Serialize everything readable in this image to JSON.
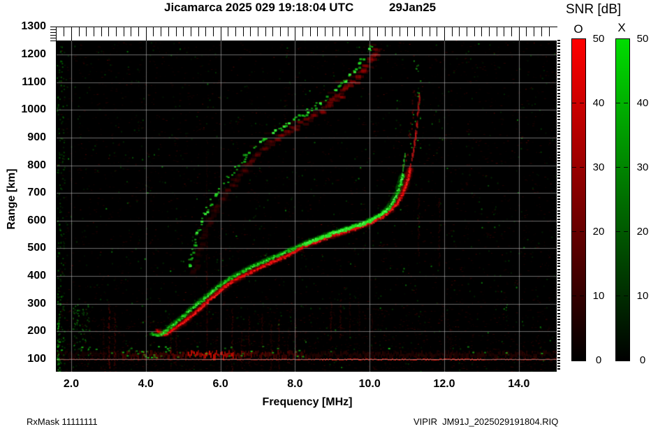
{
  "header": {
    "title": "Jicamarca 2025 029 19:18:04 UTC",
    "date": "29Jan25"
  },
  "footer": {
    "left": "RxMask 11111111",
    "right": "VIPIR  JM91J_2025029191804.RIQ"
  },
  "chart_data": {
    "type": "heatmap",
    "title": "Jicamarca 2025 029 19:18:04 UTC",
    "date_label": "29Jan25",
    "xlabel": "Frequency [MHz]",
    "ylabel": "Range [km]",
    "xlim": [
      1.6,
      15.0
    ],
    "ylim": [
      55,
      1250
    ],
    "grid": true,
    "background": "#000000",
    "xticks": [
      2,
      4,
      6,
      8,
      10,
      12,
      14
    ],
    "xtick_labels": [
      "2.0",
      "4.0",
      "6.0",
      "8.0",
      "10.0",
      "12.0",
      "14.0"
    ],
    "minor_xtick_step": 0.2,
    "yticks": [
      100,
      200,
      300,
      400,
      500,
      600,
      700,
      800,
      900,
      1000,
      1100,
      1200,
      1300
    ],
    "ytick_labels": [
      "100",
      "200",
      "300",
      "400",
      "500",
      "600",
      "700",
      "800",
      "900",
      "1000",
      "1100",
      "1200",
      "1300"
    ],
    "colorbar": {
      "title": "SNR [dB]",
      "o_label": "O",
      "x_label": "X",
      "min": 0,
      "max": 50,
      "ticks": [
        50,
        40,
        30,
        20,
        10,
        0
      ],
      "tick_labels": [
        "50",
        "40",
        "30",
        "20",
        "10",
        "0"
      ],
      "o_color": "#ff0000",
      "x_color": "#00dd00"
    },
    "colors": {
      "o_mode": "#ee1010",
      "x_mode": "#22dd22",
      "grid": "#b2b2b2"
    },
    "traces": {
      "o_mode_first_hop": [
        [
          4.3,
          205
        ],
        [
          4.42,
          193
        ],
        [
          4.55,
          196
        ],
        [
          4.75,
          212
        ],
        [
          4.95,
          232
        ],
        [
          5.2,
          258
        ],
        [
          5.45,
          288
        ],
        [
          5.7,
          318
        ],
        [
          5.95,
          348
        ],
        [
          6.2,
          375
        ],
        [
          6.5,
          398
        ],
        [
          6.8,
          418
        ],
        [
          7.1,
          437
        ],
        [
          7.45,
          458
        ],
        [
          7.8,
          478
        ],
        [
          8.15,
          505
        ],
        [
          8.5,
          525
        ],
        [
          8.9,
          545
        ],
        [
          9.3,
          562
        ],
        [
          9.7,
          580
        ],
        [
          10.0,
          596
        ],
        [
          10.3,
          615
        ],
        [
          10.55,
          640
        ],
        [
          10.75,
          672
        ],
        [
          10.9,
          710
        ],
        [
          11.0,
          752
        ],
        [
          11.08,
          800
        ],
        [
          11.15,
          855
        ],
        [
          11.22,
          915
        ],
        [
          11.27,
          975
        ],
        [
          11.3,
          1030
        ],
        [
          11.33,
          1075
        ]
      ],
      "x_mode_first_hop": [
        [
          4.13,
          192
        ],
        [
          4.28,
          186
        ],
        [
          4.45,
          196
        ],
        [
          4.62,
          215
        ],
        [
          4.82,
          238
        ],
        [
          5.05,
          264
        ],
        [
          5.3,
          293
        ],
        [
          5.55,
          322
        ],
        [
          5.8,
          350
        ],
        [
          6.05,
          376
        ],
        [
          6.3,
          398
        ],
        [
          6.6,
          420
        ],
        [
          6.9,
          440
        ],
        [
          7.2,
          458
        ],
        [
          7.5,
          475
        ],
        [
          7.85,
          495
        ],
        [
          8.2,
          518
        ],
        [
          8.55,
          537
        ],
        [
          8.95,
          556
        ],
        [
          9.35,
          573
        ],
        [
          9.75,
          590
        ],
        [
          10.05,
          607
        ],
        [
          10.3,
          626
        ],
        [
          10.5,
          650
        ],
        [
          10.65,
          682
        ],
        [
          10.77,
          718
        ],
        [
          10.85,
          760
        ],
        [
          10.9,
          810
        ],
        [
          10.93,
          855
        ]
      ],
      "second_hop": [
        [
          5.12,
          428
        ],
        [
          5.2,
          475
        ],
        [
          5.3,
          530
        ],
        [
          5.42,
          580
        ],
        [
          5.58,
          628
        ],
        [
          5.78,
          678
        ],
        [
          6.0,
          722
        ],
        [
          6.25,
          768
        ],
        [
          6.5,
          812
        ],
        [
          6.8,
          858
        ],
        [
          7.15,
          900
        ],
        [
          7.5,
          932
        ],
        [
          7.9,
          962
        ],
        [
          8.3,
          995
        ],
        [
          8.7,
          1035
        ],
        [
          9.1,
          1082
        ],
        [
          9.5,
          1135
        ],
        [
          9.85,
          1195
        ],
        [
          10.08,
          1248
        ]
      ],
      "spread_f_dashes": {
        "f_range": [
          11.05,
          11.35
        ],
        "range_km": [
          810,
          1190
        ]
      },
      "e_region_band_km": [
        85,
        127
      ],
      "e_region_line_km": 101,
      "critical_frequency_o_mhz": 11.3,
      "critical_frequency_x_mhz": 10.9
    },
    "rfi_streaks": [
      [
        3.0,
        70,
        300,
        0.2
      ],
      [
        3.15,
        80,
        280,
        0.16
      ],
      [
        2.85,
        100,
        260,
        0.1
      ],
      [
        4.65,
        70,
        250,
        0.12
      ],
      [
        4.8,
        80,
        220,
        0.1
      ],
      [
        5.62,
        120,
        900,
        0.06
      ],
      [
        5.62,
        150,
        420,
        0.1
      ],
      [
        6.3,
        60,
        290,
        0.14
      ],
      [
        6.55,
        70,
        200,
        0.1
      ],
      [
        6.75,
        80,
        260,
        0.12
      ],
      [
        7.1,
        90,
        270,
        0.1
      ],
      [
        7.35,
        70,
        230,
        0.1
      ],
      [
        7.55,
        60,
        250,
        0.12
      ],
      [
        7.8,
        90,
        210,
        0.08
      ],
      [
        8.0,
        100,
        250,
        0.1
      ],
      [
        8.95,
        170,
        310,
        0.13
      ],
      [
        9.2,
        180,
        320,
        0.13
      ],
      [
        9.45,
        190,
        330,
        0.1
      ],
      [
        9.7,
        200,
        300,
        0.08
      ],
      [
        10.05,
        140,
        260,
        0.08
      ],
      [
        11.3,
        470,
        700,
        0.1
      ],
      [
        11.85,
        440,
        680,
        0.09
      ],
      [
        12.15,
        100,
        220,
        0.07
      ]
    ]
  }
}
